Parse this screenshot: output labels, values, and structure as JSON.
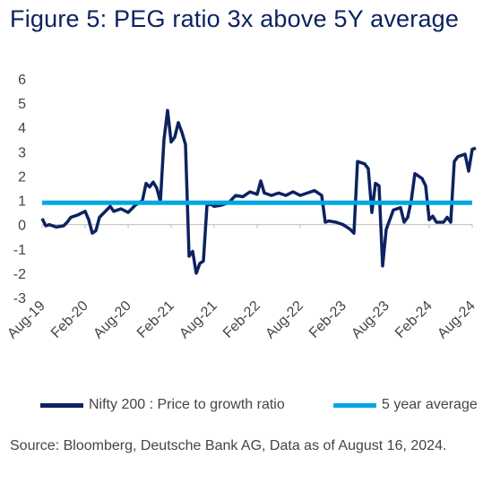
{
  "title": "Figure 5: PEG ratio 3x above 5Y average",
  "source": "Source: Bloomberg, Deutsche Bank AG, Data as of August 16, 2024.",
  "colors": {
    "nifty": "#0d2260",
    "average": "#00a8e1",
    "title": "#0d2260"
  },
  "chart_data": {
    "type": "line",
    "title": "Figure 5: PEG ratio 3x above 5Y average",
    "xlabel": "",
    "ylabel": "",
    "ylim": [
      -3,
      6
    ],
    "yticks": [
      6,
      5,
      4,
      3,
      2,
      1,
      0,
      -1,
      -2,
      -3
    ],
    "x_tick_labels": [
      "Aug-19",
      "Feb-20",
      "Aug-20",
      "Feb-21",
      "Aug-21",
      "Feb-22",
      "Aug-22",
      "Feb-23",
      "Aug-23",
      "Feb-24",
      "Aug-24"
    ],
    "x_range": [
      "Aug-19",
      "Aug-24"
    ],
    "grid": false,
    "legend_position": "bottom",
    "series": [
      {
        "name": "Nifty 200 : Price to growth ratio",
        "color": "#0d2260",
        "points": [
          [
            "2019-08",
            0.25
          ],
          [
            "2019-08",
            -0.05
          ],
          [
            "2019-09",
            0.0
          ],
          [
            "2019-10",
            -0.1
          ],
          [
            "2019-11",
            -0.05
          ],
          [
            "2019-11",
            0.1
          ],
          [
            "2019-12",
            0.3
          ],
          [
            "2020-01",
            0.4
          ],
          [
            "2020-02",
            0.55
          ],
          [
            "2020-02",
            0.2
          ],
          [
            "2020-03",
            -0.35
          ],
          [
            "2020-03",
            -0.25
          ],
          [
            "2020-04",
            0.3
          ],
          [
            "2020-05",
            0.6
          ],
          [
            "2020-05",
            0.75
          ],
          [
            "2020-06",
            0.55
          ],
          [
            "2020-07",
            0.65
          ],
          [
            "2020-08",
            0.5
          ],
          [
            "2020-08",
            0.65
          ],
          [
            "2020-09",
            0.8
          ],
          [
            "2020-10",
            1.0
          ],
          [
            "2020-10",
            1.7
          ],
          [
            "2020-11",
            1.55
          ],
          [
            "2020-11",
            1.75
          ],
          [
            "2020-12",
            1.5
          ],
          [
            "2020-12",
            0.95
          ],
          [
            "2021-01",
            3.5
          ],
          [
            "2021-01",
            4.7
          ],
          [
            "2021-02",
            3.4
          ],
          [
            "2021-02",
            3.6
          ],
          [
            "2021-03",
            4.2
          ],
          [
            "2021-03",
            3.8
          ],
          [
            "2021-04",
            3.3
          ],
          [
            "2021-04",
            -1.3
          ],
          [
            "2021-05",
            -1.1
          ],
          [
            "2021-05",
            -2.0
          ],
          [
            "2021-06",
            -1.6
          ],
          [
            "2021-06",
            -1.5
          ],
          [
            "2021-07",
            0.8
          ],
          [
            "2021-07",
            0.85
          ],
          [
            "2021-08",
            0.75
          ],
          [
            "2021-09",
            0.8
          ],
          [
            "2021-10",
            0.9
          ],
          [
            "2021-11",
            1.2
          ],
          [
            "2021-12",
            1.15
          ],
          [
            "2022-01",
            1.35
          ],
          [
            "2022-02",
            1.25
          ],
          [
            "2022-02",
            1.8
          ],
          [
            "2022-03",
            1.3
          ],
          [
            "2022-04",
            1.2
          ],
          [
            "2022-05",
            1.3
          ],
          [
            "2022-06",
            1.2
          ],
          [
            "2022-07",
            1.35
          ],
          [
            "2022-08",
            1.2
          ],
          [
            "2022-09",
            1.3
          ],
          [
            "2022-10",
            1.4
          ],
          [
            "2022-11",
            1.2
          ],
          [
            "2022-11",
            0.1
          ],
          [
            "2022-12",
            0.15
          ],
          [
            "2023-01",
            0.1
          ],
          [
            "2023-02",
            0.0
          ],
          [
            "2023-03",
            -0.2
          ],
          [
            "2023-03",
            -0.35
          ],
          [
            "2023-04",
            2.6
          ],
          [
            "2023-05",
            2.5
          ],
          [
            "2023-05",
            2.3
          ],
          [
            "2023-06",
            0.5
          ],
          [
            "2023-06",
            1.7
          ],
          [
            "2023-07",
            1.6
          ],
          [
            "2023-07",
            -1.7
          ],
          [
            "2023-08",
            -0.2
          ],
          [
            "2023-09",
            0.6
          ],
          [
            "2023-10",
            0.7
          ],
          [
            "2023-10",
            0.1
          ],
          [
            "2023-11",
            0.3
          ],
          [
            "2023-11",
            1.0
          ],
          [
            "2023-12",
            2.1
          ],
          [
            "2024-01",
            1.9
          ],
          [
            "2024-01",
            1.6
          ],
          [
            "2024-02",
            0.2
          ],
          [
            "2024-02",
            0.35
          ],
          [
            "2024-03",
            0.1
          ],
          [
            "2024-04",
            0.1
          ],
          [
            "2024-04",
            0.3
          ],
          [
            "2024-05",
            0.1
          ],
          [
            "2024-05",
            2.6
          ],
          [
            "2024-06",
            2.8
          ],
          [
            "2024-07",
            2.9
          ],
          [
            "2024-07",
            2.2
          ],
          [
            "2024-08",
            3.1
          ],
          [
            "2024-08",
            3.15
          ]
        ]
      },
      {
        "name": "5 year average",
        "color": "#00a8e1",
        "points": [
          [
            "2019-08",
            0.9
          ],
          [
            "2024-08",
            0.9
          ]
        ]
      }
    ]
  }
}
